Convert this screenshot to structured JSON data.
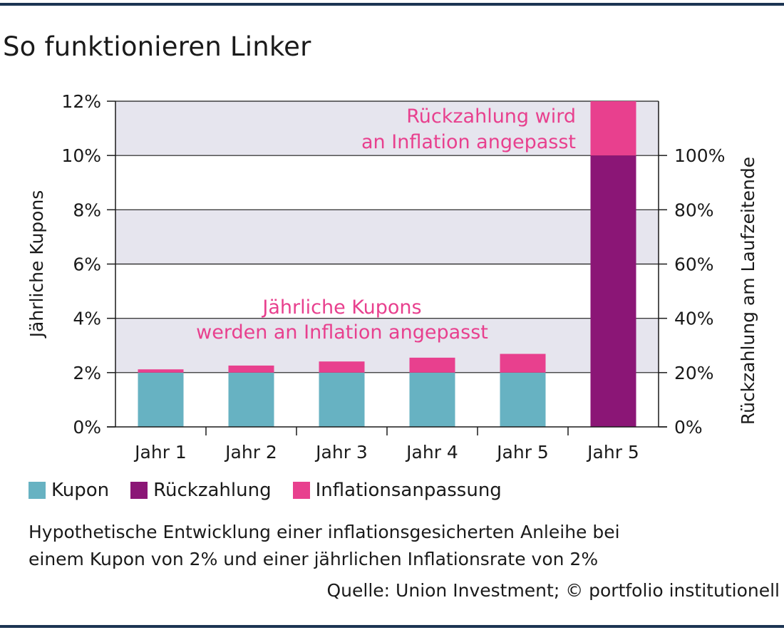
{
  "title": "So funktionieren Linker",
  "colors": {
    "kupon": "#67b2c2",
    "rueckzahlung": "#8b1676",
    "inflation": "#e8408e",
    "band": "#e6e5ee",
    "rule": "#1c3553",
    "annotation": "#e8408e"
  },
  "chart_data": {
    "type": "bar",
    "stacked": true,
    "categories": [
      "Jahr 1",
      "Jahr 2",
      "Jahr 3",
      "Jahr 4",
      "Jahr 5",
      "Jahr 5"
    ],
    "series": [
      {
        "name": "Kupon",
        "axis": "left",
        "values": [
          2.0,
          2.0,
          2.0,
          2.0,
          2.0,
          0
        ]
      },
      {
        "name": "Rückzahlung",
        "axis": "right",
        "values": [
          0,
          0,
          0,
          0,
          0,
          100
        ]
      },
      {
        "name": "Inflationsanpassung",
        "axis": "mixed",
        "values": [
          0.12,
          0.26,
          0.41,
          0.55,
          0.69,
          20
        ]
      }
    ],
    "ylabel": "Jährliche Kupons",
    "ylim": [
      0,
      12
    ],
    "yticks": [
      "0%",
      "2%",
      "4%",
      "6%",
      "8%",
      "10%",
      "12%"
    ],
    "y2label": "Rückzahlung am Laufzeitende",
    "y2lim": [
      0,
      120
    ],
    "y2ticks": [
      "0%",
      "20%",
      "40%",
      "60%",
      "80%",
      "100%"
    ],
    "annotations": [
      {
        "lines": [
          "Rückzahlung wird",
          "an Inflation angepasst"
        ]
      },
      {
        "lines": [
          "Jährliche Kupons",
          "werden an Inflation angepasst"
        ]
      }
    ],
    "legend": [
      "Kupon",
      "Rückzahlung",
      "Inflationsanpassung"
    ],
    "legend_position": "bottom-left"
  },
  "note_lines": [
    "Hypothetische Entwicklung einer inflationsgesicherten Anleihe bei",
    "einem Kupon von 2% und einer jährlichen Inflationsrate von 2%"
  ],
  "source": "Quelle: Union Investment; © portfolio institutionell"
}
